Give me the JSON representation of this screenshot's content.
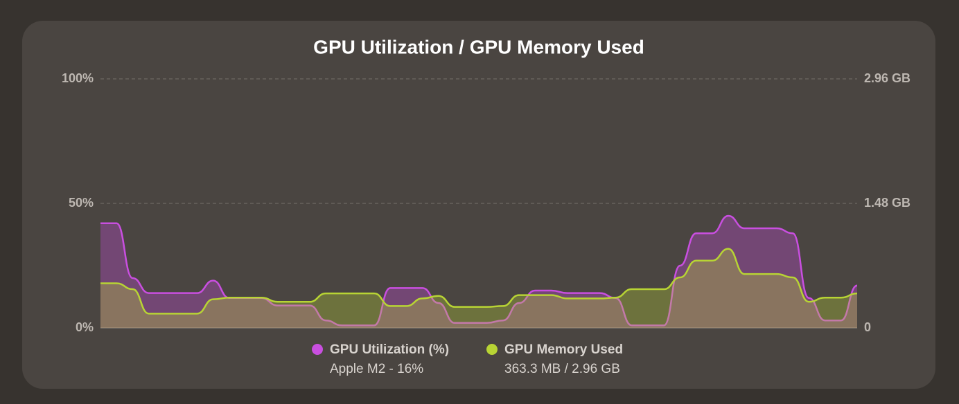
{
  "chart_data": {
    "type": "area",
    "title": "GPU Utilization / GPU Memory Used",
    "ylim": [
      0,
      100
    ],
    "yticks": [
      {
        "value": 0,
        "label": "0%"
      },
      {
        "value": 50,
        "label": "50%"
      },
      {
        "value": 100,
        "label": "100%"
      }
    ],
    "y2lim": [
      0,
      2.96
    ],
    "y2ticks": [
      0,
      {
        "value": 1.48,
        "label": "1.48 GB"
      },
      {
        "value": 2.96,
        "label": "2.96 GB"
      }
    ],
    "grid": true,
    "legend": "bottom",
    "series": [
      {
        "name": "GPU Utilization (%)",
        "detail": "Apple M2 - 16%",
        "color": "#c94fe0",
        "values": [
          42,
          42,
          20,
          14,
          14,
          14,
          14,
          19,
          12,
          12,
          12,
          9,
          9,
          9,
          3,
          1,
          1,
          1,
          16,
          16,
          16,
          10,
          2,
          2,
          2,
          3,
          10,
          15,
          15,
          14,
          14,
          14,
          12,
          1,
          1,
          1,
          25,
          38,
          38,
          45,
          40,
          40,
          40,
          38,
          12,
          3,
          3,
          17
        ]
      },
      {
        "name": "GPU Memory Used",
        "detail": "363.3 MB / 2.96 GB",
        "color": "#b8d434",
        "axis": "y2",
        "values": [
          0.53,
          0.53,
          0.46,
          0.17,
          0.17,
          0.17,
          0.17,
          0.34,
          0.36,
          0.36,
          0.36,
          0.31,
          0.31,
          0.31,
          0.41,
          0.41,
          0.41,
          0.41,
          0.26,
          0.26,
          0.35,
          0.38,
          0.25,
          0.25,
          0.25,
          0.26,
          0.39,
          0.39,
          0.39,
          0.35,
          0.35,
          0.35,
          0.36,
          0.46,
          0.46,
          0.46,
          0.6,
          0.8,
          0.8,
          0.94,
          0.64,
          0.64,
          0.64,
          0.6,
          0.31,
          0.36,
          0.36,
          0.41
        ]
      }
    ]
  }
}
